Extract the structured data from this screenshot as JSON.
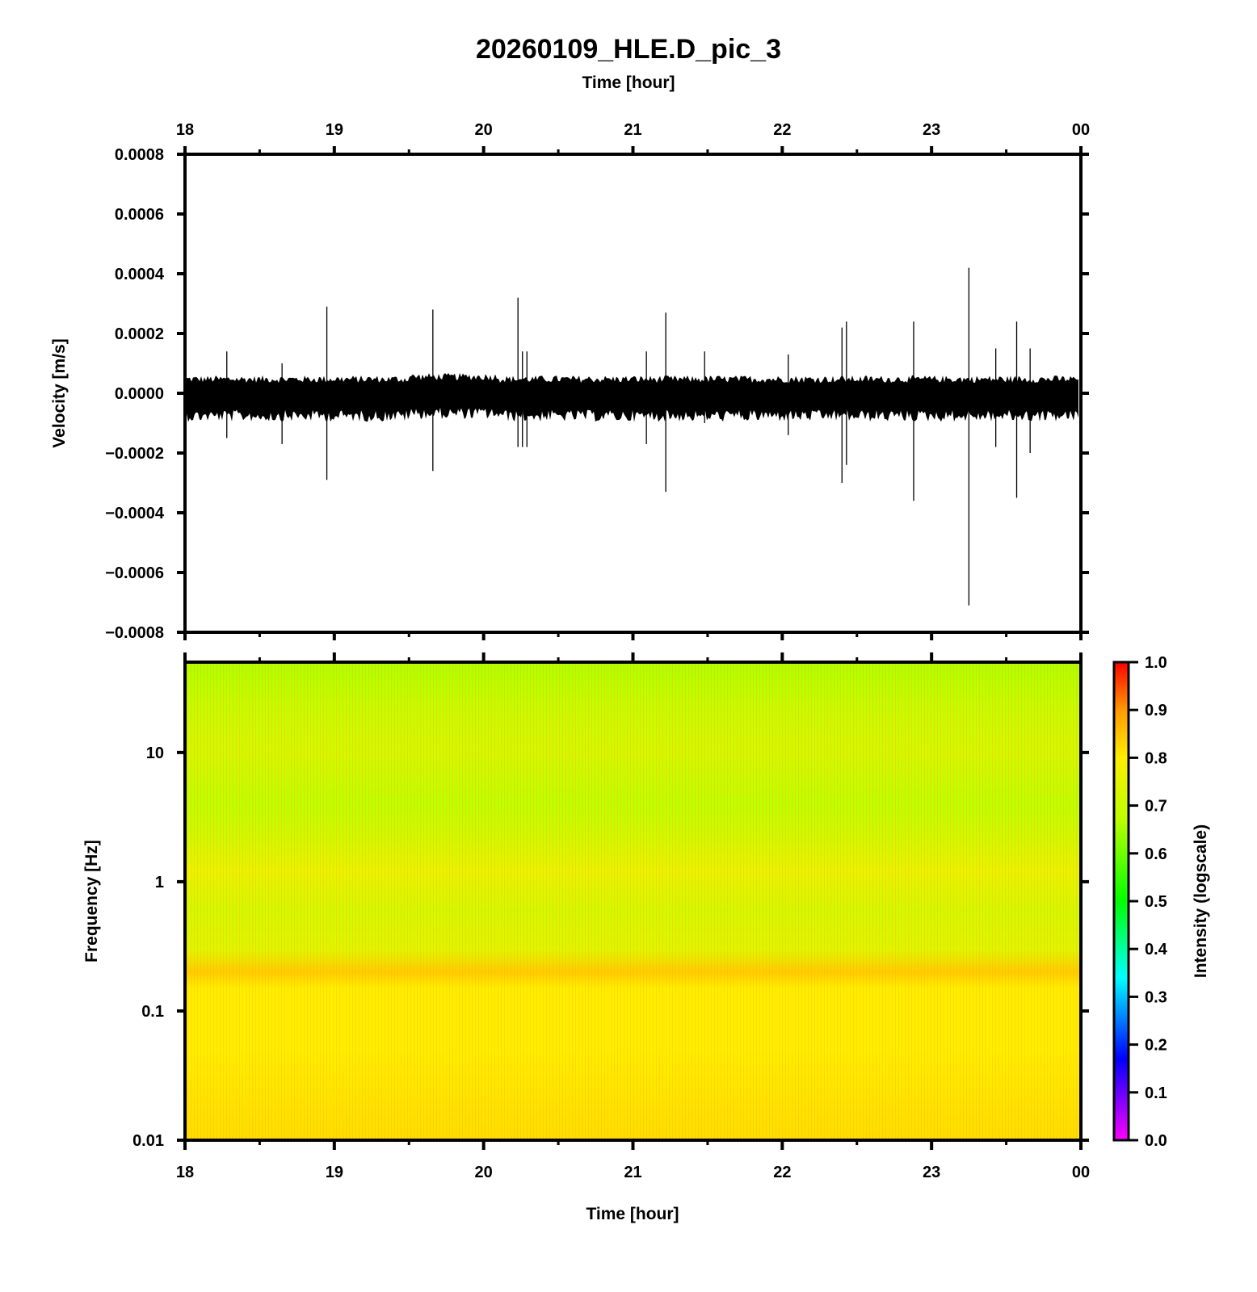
{
  "chart_data": [
    {
      "type": "line",
      "title": "20260109_HLE.D_pic_3",
      "xlabel": "Time [hour]",
      "ylabel": "Velocity [m/s]",
      "x_range_hours": [
        18,
        24
      ],
      "ylim": [
        -0.0008,
        0.0008
      ],
      "x_ticks": [
        "18",
        "19",
        "20",
        "21",
        "22",
        "23",
        "00"
      ],
      "y_ticks": [
        "0.0008",
        "0.0006",
        "0.0004",
        "0.0002",
        "0.0000",
        "−0.0002",
        "−0.0004",
        "−0.0006",
        "−0.0008"
      ],
      "grid": false,
      "background_noise": {
        "upper": 5e-05,
        "lower": -8e-05
      },
      "spikes": [
        {
          "t": 18.28,
          "max": 0.00014,
          "min": -0.00015
        },
        {
          "t": 18.65,
          "max": 0.0001,
          "min": -0.00017
        },
        {
          "t": 18.95,
          "max": 0.00029,
          "min": -0.00029
        },
        {
          "t": 19.66,
          "max": 0.00028,
          "min": -0.00026
        },
        {
          "t": 20.23,
          "max": 0.00032,
          "min": -0.00018
        },
        {
          "t": 20.26,
          "max": 0.00014,
          "min": -0.00018
        },
        {
          "t": 20.29,
          "max": 0.00014,
          "min": -0.00018
        },
        {
          "t": 21.09,
          "max": 0.00014,
          "min": -0.00017
        },
        {
          "t": 21.22,
          "max": 0.00027,
          "min": -0.00033
        },
        {
          "t": 21.48,
          "max": 0.00014,
          "min": -0.0001
        },
        {
          "t": 22.04,
          "max": 0.00013,
          "min": -0.00014
        },
        {
          "t": 22.4,
          "max": 0.00022,
          "min": -0.0003
        },
        {
          "t": 22.43,
          "max": 0.00024,
          "min": -0.00024
        },
        {
          "t": 22.88,
          "max": 0.00024,
          "min": -0.00036
        },
        {
          "t": 23.25,
          "max": 0.00042,
          "min": -0.00071
        },
        {
          "t": 23.43,
          "max": 0.00015,
          "min": -0.00018
        },
        {
          "t": 23.57,
          "max": 0.00024,
          "min": -0.00035
        },
        {
          "t": 23.66,
          "max": 0.00015,
          "min": -0.0002
        }
      ]
    },
    {
      "type": "heatmap",
      "xlabel": "Time [hour]",
      "ylabel": "Frequency [Hz]",
      "x_range_hours": [
        18,
        24
      ],
      "ylim_hz": [
        0.01,
        50
      ],
      "y_scale": "log",
      "x_ticks": [
        "18",
        "19",
        "20",
        "21",
        "22",
        "23",
        "00"
      ],
      "y_ticks": [
        "10",
        "1",
        "0.1",
        "0.01"
      ],
      "colorbar": {
        "label": "Intensity (logscale)",
        "range": [
          0,
          1
        ],
        "ticks": [
          "1.0",
          "0.9",
          "0.8",
          "0.7",
          "0.6",
          "0.5",
          "0.4",
          "0.3",
          "0.2",
          "0.1",
          "0.0"
        ],
        "colormap": "rainbow (magenta → red)"
      },
      "intensity_profile": [
        {
          "freq_hz": 50,
          "intensity": 0.66
        },
        {
          "freq_hz": 20,
          "intensity": 0.7
        },
        {
          "freq_hz": 10,
          "intensity": 0.72
        },
        {
          "freq_hz": 4,
          "intensity": 0.68
        },
        {
          "freq_hz": 2,
          "intensity": 0.72
        },
        {
          "freq_hz": 1.2,
          "intensity": 0.76
        },
        {
          "freq_hz": 0.6,
          "intensity": 0.72
        },
        {
          "freq_hz": 0.3,
          "intensity": 0.74
        },
        {
          "freq_hz": 0.2,
          "intensity": 0.84
        },
        {
          "freq_hz": 0.15,
          "intensity": 0.8
        },
        {
          "freq_hz": 0.05,
          "intensity": 0.8
        },
        {
          "freq_hz": 0.01,
          "intensity": 0.82
        }
      ]
    }
  ]
}
